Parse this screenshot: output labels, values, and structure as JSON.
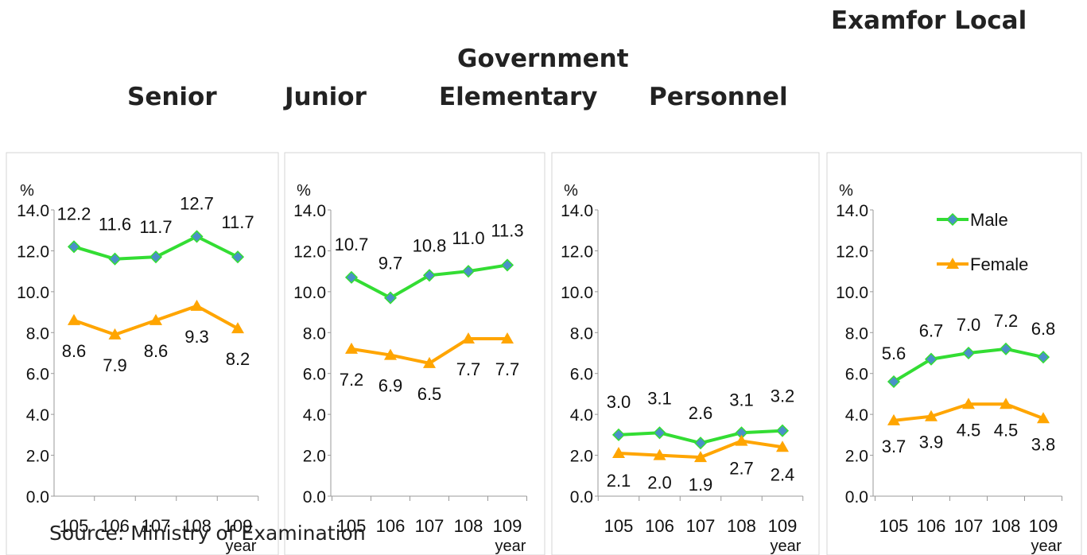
{
  "headers": {
    "exam": "Examfor Local",
    "government": "Government",
    "senior": "Senior",
    "junior": "Junior",
    "elementary": "Elementary",
    "personnel": "Personnel"
  },
  "source": "Source: Ministry of Examination",
  "colors": {
    "male": "#33dd33",
    "female": "#ffa500",
    "marker_male": "#4a90c8",
    "axis": "#999999"
  },
  "chart_data": [
    {
      "type": "line",
      "unit_label": "%",
      "xlabel": "year",
      "categories": [
        "105",
        "106",
        "107",
        "108",
        "109"
      ],
      "ylim": [
        0,
        14
      ],
      "yticks": [
        "0.0",
        "2.0",
        "4.0",
        "6.0",
        "8.0",
        "10.0",
        "12.0",
        "14.0"
      ],
      "series": [
        {
          "name": "Male",
          "values": [
            12.2,
            11.6,
            11.7,
            12.7,
            11.7
          ],
          "labels": [
            "12.2",
            "11.6",
            "11.7",
            "12.7",
            "11.7"
          ]
        },
        {
          "name": "Female",
          "values": [
            8.6,
            7.9,
            8.6,
            9.3,
            8.2
          ],
          "labels": [
            "8.6",
            "7.9",
            "8.6",
            "9.3",
            "8.2"
          ]
        }
      ]
    },
    {
      "type": "line",
      "unit_label": "%",
      "xlabel": "year",
      "categories": [
        "105",
        "106",
        "107",
        "108",
        "109"
      ],
      "ylim": [
        0,
        14
      ],
      "yticks": [
        "0.0",
        "2.0",
        "4.0",
        "6.0",
        "8.0",
        "10.0",
        "12.0",
        "14.0"
      ],
      "series": [
        {
          "name": "Male",
          "values": [
            10.7,
            9.7,
            10.8,
            11.0,
            11.3
          ],
          "labels": [
            "10.7",
            "9.7",
            "10.8",
            "11.0",
            "11.3"
          ]
        },
        {
          "name": "Female",
          "values": [
            7.2,
            6.9,
            6.5,
            7.7,
            7.7
          ],
          "labels": [
            "7.2",
            "6.9",
            "6.5",
            "7.7",
            "7.7"
          ]
        }
      ]
    },
    {
      "type": "line",
      "unit_label": "%",
      "xlabel": "year",
      "categories": [
        "105",
        "106",
        "107",
        "108",
        "109"
      ],
      "ylim": [
        0,
        14
      ],
      "yticks": [
        "0.0",
        "2.0",
        "4.0",
        "6.0",
        "8.0",
        "10.0",
        "12.0",
        "14.0"
      ],
      "series": [
        {
          "name": "Male",
          "values": [
            3.0,
            3.1,
            2.6,
            3.1,
            3.2
          ],
          "labels": [
            "3.0",
            "3.1",
            "2.6",
            "3.1",
            "3.2"
          ]
        },
        {
          "name": "Female",
          "values": [
            2.1,
            2.0,
            1.9,
            2.7,
            2.4
          ],
          "labels": [
            "2.1",
            "2.0",
            "1.9",
            "2.7",
            "2.4"
          ]
        }
      ]
    },
    {
      "type": "line",
      "unit_label": "%",
      "xlabel": "year",
      "categories": [
        "105",
        "106",
        "107",
        "108",
        "109"
      ],
      "ylim": [
        0,
        14
      ],
      "yticks": [
        "0.0",
        "2.0",
        "4.0",
        "6.0",
        "8.0",
        "10.0",
        "12.0",
        "14.0"
      ],
      "legend": [
        "Male",
        "Female"
      ],
      "series": [
        {
          "name": "Male",
          "values": [
            5.6,
            6.7,
            7.0,
            7.2,
            6.8
          ],
          "labels": [
            "5.6",
            "6.7",
            "7.0",
            "7.2",
            "6.8"
          ]
        },
        {
          "name": "Female",
          "values": [
            3.7,
            3.9,
            4.5,
            4.5,
            3.8
          ],
          "labels": [
            "3.7",
            "3.9",
            "4.5",
            "4.5",
            "3.8"
          ]
        }
      ]
    }
  ]
}
